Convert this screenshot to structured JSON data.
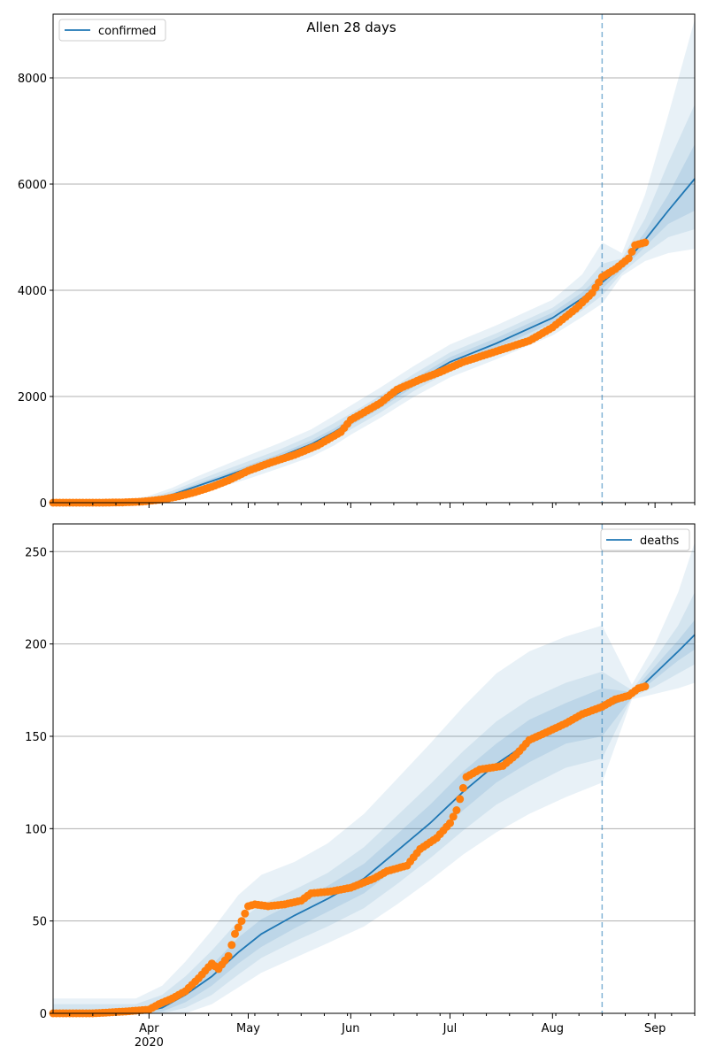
{
  "figure": {
    "title": "Allen 28 days"
  },
  "colors": {
    "line": "#1f77b4",
    "observed": "#ff7f0e",
    "band": "#1f77b4",
    "grid": "#b0b0b0",
    "cutoff": "#1f77b4"
  },
  "chart_data": [
    {
      "type": "line",
      "legend": "confirmed",
      "legend_position": "top-left",
      "grid": "horizontal",
      "x_range": [
        "2020-03-03",
        "2020-09-13"
      ],
      "ylim": [
        0,
        9200
      ],
      "yticks": [
        0,
        2000,
        4000,
        6000,
        8000
      ],
      "cutoff_date": "2020-08-16",
      "month_ticks": [
        {
          "date": "2020-04-01",
          "label": "Apr",
          "sublabel": "2020"
        },
        {
          "date": "2020-05-01",
          "label": "May",
          "sublabel": ""
        },
        {
          "date": "2020-06-01",
          "label": "Jun",
          "sublabel": ""
        },
        {
          "date": "2020-07-01",
          "label": "Jul",
          "sublabel": ""
        },
        {
          "date": "2020-08-01",
          "label": "Aug",
          "sublabel": ""
        },
        {
          "date": "2020-09-01",
          "label": "Sep",
          "sublabel": ""
        }
      ],
      "show_xtick_labels": false,
      "model": {
        "x": [
          "2020-03-03",
          "2020-03-20",
          "2020-03-27",
          "2020-04-01",
          "2020-04-08",
          "2020-04-15",
          "2020-04-22",
          "2020-05-01",
          "2020-05-10",
          "2020-05-20",
          "2020-05-27",
          "2020-06-01",
          "2020-06-10",
          "2020-06-20",
          "2020-07-01",
          "2020-07-15",
          "2020-08-01",
          "2020-08-10",
          "2020-08-16",
          "2020-08-22",
          "2020-08-29",
          "2020-09-05",
          "2020-09-13"
        ],
        "y": [
          0,
          0,
          15,
          50,
          150,
          300,
          450,
          650,
          850,
          1100,
          1330,
          1520,
          1850,
          2250,
          2650,
          3000,
          3480,
          3850,
          4150,
          4450,
          4950,
          5500,
          6100
        ],
        "bands": [
          {
            "lower": [
              0,
              0,
              0,
              10,
              60,
              160,
              280,
              450,
              640,
              860,
              1080,
              1280,
              1600,
              1990,
              2360,
              2700,
              3150,
              3500,
              3750,
              4270,
              4550,
              4700,
              4780
            ],
            "upper": [
              0,
              30,
              70,
              130,
              280,
              480,
              660,
              890,
              1110,
              1380,
              1640,
              1830,
              2170,
              2570,
              2980,
              3340,
              3820,
              4300,
              4900,
              4700,
              5800,
              7300,
              9100
            ]
          },
          {
            "lower": [
              0,
              0,
              2,
              25,
              95,
              210,
              340,
              530,
              720,
              950,
              1180,
              1380,
              1700,
              2100,
              2480,
              2820,
              3280,
              3620,
              3900,
              4330,
              4690,
              5000,
              5150
            ],
            "upper": [
              0,
              12,
              40,
              90,
              220,
              400,
              570,
              780,
              990,
              1260,
              1500,
              1680,
              2020,
              2420,
              2830,
              3190,
              3670,
              4070,
              4500,
              4600,
              5350,
              6400,
              7500
            ]
          },
          {
            "lower": [
              0,
              0,
              8,
              38,
              125,
              260,
              405,
              600,
              795,
              1035,
              1265,
              1455,
              1780,
              2180,
              2570,
              2910,
              3390,
              3740,
              4030,
              4390,
              4820,
              5250,
              5500
            ],
            "upper": [
              0,
              4,
              25,
              68,
              180,
              345,
              500,
              705,
              910,
              1170,
              1400,
              1590,
              1930,
              2330,
              2740,
              3100,
              3580,
              3960,
              4300,
              4520,
              5100,
              5800,
              6750
            ]
          }
        ]
      },
      "observed": {
        "x": [
          "2020-03-03",
          "2020-03-10",
          "2020-03-17",
          "2020-03-24",
          "2020-03-30",
          "2020-04-05",
          "2020-04-10",
          "2020-04-15",
          "2020-04-20",
          "2020-04-25",
          "2020-05-01",
          "2020-05-08",
          "2020-05-15",
          "2020-05-22",
          "2020-05-29",
          "2020-06-01",
          "2020-06-05",
          "2020-06-10",
          "2020-06-15",
          "2020-06-22",
          "2020-06-28",
          "2020-07-05",
          "2020-07-15",
          "2020-07-25",
          "2020-08-01",
          "2020-08-08",
          "2020-08-13",
          "2020-08-16",
          "2020-08-20",
          "2020-08-24",
          "2020-08-26",
          "2020-08-29"
        ],
        "y": [
          0,
          0,
          0,
          5,
          20,
          60,
          120,
          200,
          300,
          420,
          600,
          760,
          900,
          1080,
          1330,
          1560,
          1700,
          1880,
          2130,
          2320,
          2460,
          2650,
          2850,
          3050,
          3300,
          3650,
          3950,
          4250,
          4400,
          4600,
          4850,
          4900
        ]
      }
    },
    {
      "type": "line",
      "legend": "deaths",
      "legend_position": "top-right",
      "grid": "horizontal",
      "x_range": [
        "2020-03-03",
        "2020-09-13"
      ],
      "ylim": [
        0,
        265
      ],
      "yticks": [
        0,
        50,
        100,
        150,
        200,
        250
      ],
      "cutoff_date": "2020-08-16",
      "month_ticks": [
        {
          "date": "2020-04-01",
          "label": "Apr",
          "sublabel": "2020"
        },
        {
          "date": "2020-05-01",
          "label": "May",
          "sublabel": ""
        },
        {
          "date": "2020-06-01",
          "label": "Jun",
          "sublabel": ""
        },
        {
          "date": "2020-07-01",
          "label": "Jul",
          "sublabel": ""
        },
        {
          "date": "2020-08-01",
          "label": "Aug",
          "sublabel": ""
        },
        {
          "date": "2020-09-01",
          "label": "Sep",
          "sublabel": ""
        }
      ],
      "show_xtick_labels": true,
      "model": {
        "x": [
          "2020-03-03",
          "2020-03-28",
          "2020-04-05",
          "2020-04-12",
          "2020-04-20",
          "2020-04-28",
          "2020-05-05",
          "2020-05-15",
          "2020-05-25",
          "2020-06-05",
          "2020-06-15",
          "2020-06-25",
          "2020-07-05",
          "2020-07-15",
          "2020-07-25",
          "2020-08-05",
          "2020-08-16",
          "2020-08-25",
          "2020-09-01",
          "2020-09-08",
          "2020-09-13"
        ],
        "y": [
          0,
          0,
          3,
          10,
          20,
          33,
          43,
          53,
          62,
          73,
          88,
          103,
          120,
          135,
          147,
          157,
          165,
          172,
          184,
          196,
          205
        ],
        "bands": [
          {
            "lower": [
              0,
              0,
              0,
              0,
              5,
              14,
              22,
              30,
              38,
              47,
              59,
              72,
              86,
              98,
              108,
              117,
              125,
              170,
              173,
              176,
              179
            ],
            "upper": [
              8,
              8,
              15,
              28,
              45,
              64,
              75,
              82,
              92,
              108,
              127,
              146,
              166,
              184,
              196,
              204,
              210,
              178,
              200,
              228,
              255
            ]
          },
          {
            "lower": [
              0,
              0,
              0,
              3,
              10,
              21,
              30,
              39,
              47,
              57,
              70,
              84,
              99,
              113,
              123,
              133,
              138,
              171,
              177,
              184,
              189
            ],
            "upper": [
              5,
              5,
              10,
              20,
              34,
              50,
              59,
              67,
              76,
              90,
              107,
              124,
              142,
              158,
              170,
              179,
              185,
              175,
              192,
              210,
              228
            ]
          },
          {
            "lower": [
              0,
              0,
              1,
              6,
              15,
              27,
              36,
              46,
              55,
              65,
              79,
              94,
              110,
              125,
              136,
              146,
              150,
              171,
              181,
              191,
              197
            ],
            "upper": [
              2,
              2,
              6,
              14,
              26,
              41,
              51,
              60,
              69,
              81,
              97,
              113,
              131,
              146,
              159,
              168,
              176,
              174,
              188,
              202,
              213
            ]
          }
        ]
      },
      "observed": {
        "x": [
          "2020-03-03",
          "2020-03-15",
          "2020-03-25",
          "2020-04-01",
          "2020-04-04",
          "2020-04-08",
          "2020-04-12",
          "2020-04-16",
          "2020-04-20",
          "2020-04-22",
          "2020-04-25",
          "2020-04-27",
          "2020-04-29",
          "2020-05-01",
          "2020-05-03",
          "2020-05-07",
          "2020-05-12",
          "2020-05-17",
          "2020-05-20",
          "2020-05-26",
          "2020-06-01",
          "2020-06-08",
          "2020-06-12",
          "2020-06-18",
          "2020-06-22",
          "2020-06-27",
          "2020-07-01",
          "2020-07-03",
          "2020-07-06",
          "2020-07-10",
          "2020-07-17",
          "2020-07-21",
          "2020-07-25",
          "2020-07-30",
          "2020-08-05",
          "2020-08-10",
          "2020-08-16",
          "2020-08-20",
          "2020-08-24",
          "2020-08-27",
          "2020-08-29"
        ],
        "y": [
          0,
          0,
          1,
          2,
          5,
          8,
          12,
          19,
          27,
          24,
          31,
          43,
          50,
          58,
          59,
          58,
          59,
          61,
          65,
          66,
          68,
          73,
          77,
          80,
          89,
          95,
          103,
          110,
          128,
          132,
          134,
          140,
          148,
          152,
          157,
          162,
          166,
          170,
          172,
          176,
          177
        ]
      }
    }
  ]
}
